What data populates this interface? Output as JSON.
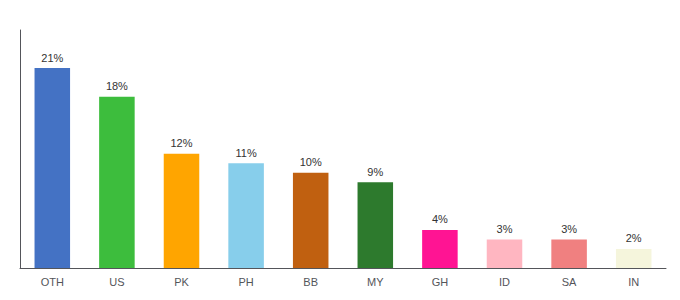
{
  "chart_data": {
    "type": "bar",
    "categories": [
      "OTH",
      "US",
      "PK",
      "PH",
      "BB",
      "MY",
      "GH",
      "ID",
      "SA",
      "IN"
    ],
    "values": [
      21,
      18,
      12,
      11,
      10,
      9,
      4,
      3,
      3,
      2
    ],
    "value_labels": [
      "21%",
      "18%",
      "12%",
      "11%",
      "10%",
      "9%",
      "4%",
      "3%",
      "3%",
      "2%"
    ],
    "colors": [
      "#4472C4",
      "#3DBD3D",
      "#FFA500",
      "#87CEEB",
      "#C06010",
      "#2D7A2D",
      "#FF1493",
      "#FFB6C1",
      "#F08080",
      "#F5F5DC"
    ],
    "ylim": [
      0,
      25
    ],
    "grid": false,
    "data_labels": true,
    "tick_labels": "x"
  }
}
